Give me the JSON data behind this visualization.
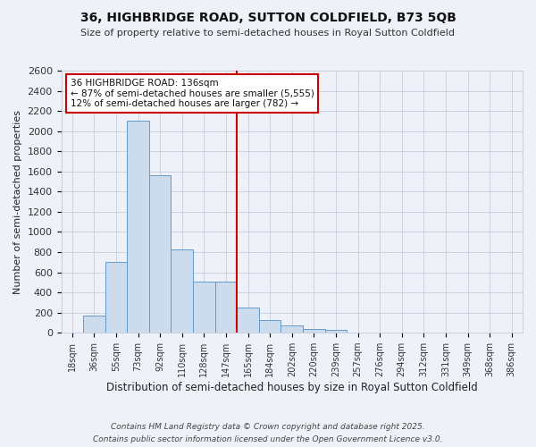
{
  "title": "36, HIGHBRIDGE ROAD, SUTTON COLDFIELD, B73 5QB",
  "subtitle": "Size of property relative to semi-detached houses in Royal Sutton Coldfield",
  "xlabel": "Distribution of semi-detached houses by size in Royal Sutton Coldfield",
  "ylabel": "Number of semi-detached properties",
  "bar_color": "#ccdcec",
  "bar_edge_color": "#6699cc",
  "bg_color": "#eef2f8",
  "grid_color": "#c5cfe0",
  "annotation_box_color": "#cc0000",
  "vline_color": "#cc0000",
  "categories": [
    "18sqm",
    "36sqm",
    "55sqm",
    "73sqm",
    "92sqm",
    "110sqm",
    "128sqm",
    "147sqm",
    "165sqm",
    "184sqm",
    "202sqm",
    "220sqm",
    "239sqm",
    "257sqm",
    "276sqm",
    "294sqm",
    "312sqm",
    "331sqm",
    "349sqm",
    "368sqm",
    "386sqm"
  ],
  "values": [
    0,
    170,
    700,
    2100,
    1560,
    830,
    510,
    510,
    250,
    130,
    70,
    35,
    25,
    0,
    0,
    0,
    0,
    0,
    0,
    0,
    0
  ],
  "vline_position": 7.5,
  "pct_smaller": 87,
  "count_smaller": 5555,
  "pct_larger": 12,
  "count_larger": 782,
  "annotation_line1": "36 HIGHBRIDGE ROAD: 136sqm",
  "annotation_line2": "← 87% of semi-detached houses are smaller (5,555)",
  "annotation_line3": "12% of semi-detached houses are larger (782) →",
  "ylim": [
    0,
    2600
  ],
  "yticks": [
    0,
    200,
    400,
    600,
    800,
    1000,
    1200,
    1400,
    1600,
    1800,
    2000,
    2200,
    2400,
    2600
  ],
  "footnote1": "Contains HM Land Registry data © Crown copyright and database right 2025.",
  "footnote2": "Contains public sector information licensed under the Open Government Licence v3.0."
}
